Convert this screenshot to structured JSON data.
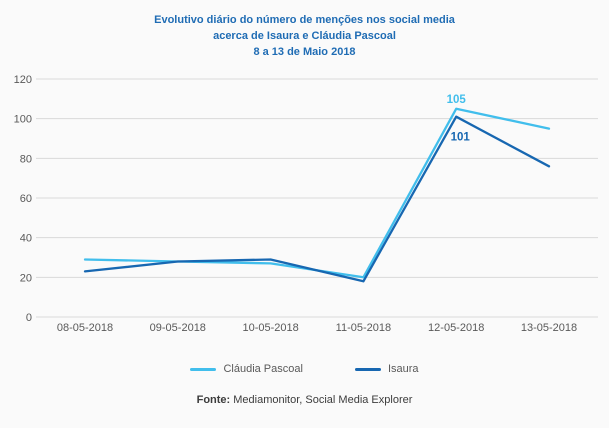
{
  "title": {
    "line1": "Evolutivo diário do número de menções nos social media",
    "line2": "acerca de Isaura e Cláudia Pascoal",
    "line3": "8 a 13 de Maio 2018"
  },
  "colors": {
    "background": "#FAFAFA",
    "title": "#1F6CB4",
    "grid": "#D9D9D9",
    "axis_text": "#595959",
    "series_claudia": "#41BEEC",
    "series_isaura": "#1767B1"
  },
  "chart_data": {
    "type": "line",
    "title": "Evolutivo diário do número de menções nos social media acerca de Isaura e Cláudia Pascoal, 8 a 13 de Maio 2018",
    "categories": [
      "08-05-2018",
      "09-05-2018",
      "10-05-2018",
      "11-05-2018",
      "12-05-2018",
      "13-05-2018"
    ],
    "series": [
      {
        "name": "Cláudia Pascoal",
        "color": "#41BEEC",
        "values": [
          29,
          28,
          27,
          20,
          105,
          95
        ]
      },
      {
        "name": "Isaura",
        "color": "#1767B1",
        "values": [
          23,
          28,
          29,
          18,
          101,
          76
        ]
      }
    ],
    "xlabel": "",
    "ylabel": "",
    "ylim": [
      0,
      120
    ],
    "yticks": [
      0,
      20,
      40,
      60,
      80,
      100,
      120
    ],
    "grid": "horizontal",
    "legend_position": "bottom",
    "annotations": [
      {
        "series": "Cláudia Pascoal",
        "category": "12-05-2018",
        "label": "105",
        "position": "above"
      },
      {
        "series": "Isaura",
        "category": "12-05-2018",
        "label": "101",
        "position": "below"
      }
    ]
  },
  "footer": {
    "source_label": "Fonte:",
    "source_text": " Mediamonitor, Social Media Explorer"
  }
}
